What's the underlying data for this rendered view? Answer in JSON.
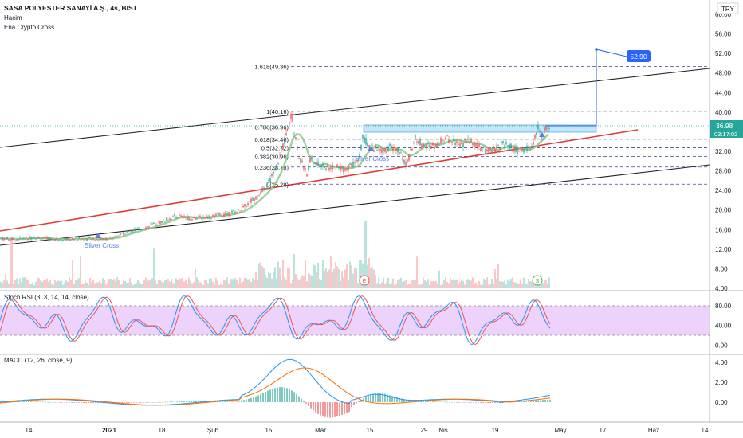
{
  "header": {
    "symbol": "SASA POLYESTER SANAYİ A.Ş., 4s, BIST",
    "indicator_1": "Hacim",
    "indicator_2": "Ena Crypto Cross",
    "currency": "TRY"
  },
  "colors": {
    "candle_up": "#26a69a",
    "candle_down": "#ef5350",
    "ma_line": "#8fce8f",
    "red_trend": "#e53935",
    "channel": "#222222",
    "zone": "#bfe3f8",
    "target_box": "#2962ff",
    "rsi_band": "#e8c8fb",
    "rsi_k": "#2196f3",
    "rsi_d": "#ef5350",
    "macd_line": "#2196f3",
    "signal_line": "#ff6d00"
  },
  "chart_data": [
    {
      "type": "line",
      "panel": "price",
      "title": "SASA POLYESTER SANAYİ A.Ş., 4s, BIST",
      "price_axis_ticks": [
        "60.00",
        "56.00",
        "52.00",
        "48.00",
        "44.00",
        "40.00",
        "36.00",
        "32.00",
        "28.00",
        "24.00",
        "20.00",
        "16.00",
        "12.00",
        "8.00",
        "4.00"
      ],
      "ylim": [
        4,
        60
      ],
      "x_axis_ticks": [
        "14",
        "2021",
        "18",
        "Şub",
        "15",
        "Mar",
        "15",
        "29",
        "Nis",
        "19",
        "May",
        "17",
        "Haz",
        "14"
      ],
      "last_price": "36.98",
      "countdown": "03:17:02",
      "target_label": "52.90",
      "fib_levels": [
        {
          "label": "1.618(49.36)",
          "value": 49.36
        },
        {
          "label": "1(40.16)",
          "value": 40.16
        },
        {
          "label": "0.786(36.96)",
          "value": 36.96
        },
        {
          "label": "0.618(34.46)",
          "value": 34.46
        },
        {
          "label": "0.5(32.72)",
          "value": 32.72
        },
        {
          "label": "0.382(30.96)",
          "value": 30.96
        },
        {
          "label": "0.236(28.78)",
          "value": 28.78
        },
        {
          "label": "0(25.28)",
          "value": 25.28
        }
      ],
      "annotations": [
        "Silver Cross",
        "Silver Cross"
      ],
      "event_markers": [
        "E",
        "S"
      ],
      "price_path_approx": [
        [
          0,
          14.2
        ],
        [
          20,
          14.0
        ],
        [
          40,
          14.4
        ],
        [
          60,
          14.1
        ],
        [
          80,
          14.0
        ],
        [
          100,
          14.2
        ],
        [
          120,
          14.0
        ],
        [
          140,
          14.3
        ],
        [
          160,
          15.5
        ],
        [
          180,
          16.3
        ],
        [
          200,
          17.4
        ],
        [
          220,
          18.8
        ],
        [
          240,
          18.3
        ],
        [
          260,
          18.6
        ],
        [
          280,
          19.0
        ],
        [
          300,
          19.8
        ],
        [
          320,
          22.5
        ],
        [
          335,
          25.0
        ],
        [
          345,
          28.0
        ],
        [
          355,
          33.0
        ],
        [
          362,
          37.5
        ],
        [
          366,
          40.0
        ],
        [
          370,
          35.0
        ],
        [
          375,
          31.0
        ],
        [
          380,
          29.5
        ],
        [
          385,
          27.0
        ],
        [
          390,
          30.5
        ],
        [
          400,
          29.2
        ],
        [
          410,
          28.6
        ],
        [
          420,
          28.8
        ],
        [
          430,
          28.3
        ],
        [
          440,
          28.9
        ],
        [
          450,
          30.0
        ],
        [
          455,
          34.8
        ],
        [
          462,
          33.5
        ],
        [
          470,
          32.5
        ],
        [
          480,
          32.0
        ],
        [
          490,
          32.8
        ],
        [
          500,
          32.2
        ],
        [
          510,
          29.0
        ],
        [
          515,
          32.0
        ],
        [
          520,
          34.5
        ],
        [
          530,
          33.5
        ],
        [
          540,
          33.0
        ],
        [
          550,
          33.8
        ],
        [
          560,
          34.6
        ],
        [
          570,
          34.2
        ],
        [
          580,
          33.5
        ],
        [
          590,
          34.0
        ],
        [
          600,
          33.0
        ],
        [
          610,
          31.8
        ],
        [
          620,
          32.5
        ],
        [
          630,
          33.5
        ],
        [
          640,
          32.8
        ],
        [
          650,
          32.0
        ],
        [
          660,
          32.5
        ],
        [
          665,
          32.8
        ],
        [
          670,
          34.0
        ],
        [
          675,
          36.5
        ],
        [
          680,
          35.0
        ],
        [
          685,
          36.8
        ],
        [
          690,
          36.98
        ]
      ]
    },
    {
      "type": "area",
      "panel": "stoch_rsi",
      "title": "Stoch RSI (3, 3, 14, 14, close)",
      "axis_ticks": [
        "80.00",
        "40.00",
        "0.00"
      ],
      "ylim": [
        0,
        100
      ],
      "band": [
        20,
        80
      ]
    },
    {
      "type": "bar",
      "panel": "macd",
      "title": "MACD (12, 26, close, 9)",
      "axis_ticks": [
        "4.00",
        "2.00",
        "0.00"
      ],
      "ylim": [
        -1.5,
        5
      ]
    }
  ]
}
